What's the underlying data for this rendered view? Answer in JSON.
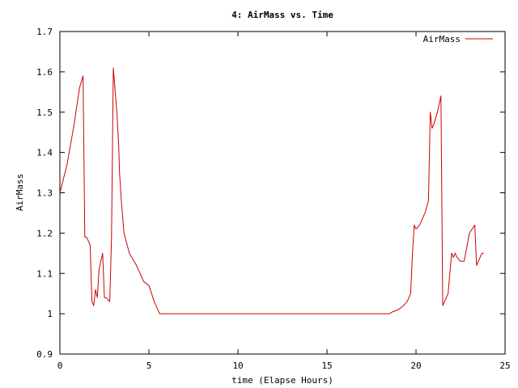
{
  "chart_data": {
    "type": "line",
    "title": "4: AirMass vs. Time",
    "xlabel": "time (Elapse Hours)",
    "ylabel": "AirMass",
    "xlim": [
      0,
      25
    ],
    "ylim": [
      0.9,
      1.7
    ],
    "xticks": [
      0,
      5,
      10,
      15,
      20,
      25
    ],
    "xtick_labels": [
      "0",
      "5",
      "10",
      "15",
      "20",
      "25"
    ],
    "yticks": [
      0.9,
      1.0,
      1.1,
      1.2,
      1.3,
      1.4,
      1.5,
      1.6,
      1.7
    ],
    "ytick_labels": [
      "0.9",
      "1",
      "1.1",
      "1.2",
      "1.3",
      "1.4",
      "1.5",
      "1.6",
      "1.7"
    ],
    "grid": false,
    "legend_position": "top-right",
    "series": [
      {
        "name": "AirMass",
        "color": "#cc0000",
        "x": [
          0.0,
          0.4,
          0.8,
          1.1,
          1.3,
          1.4,
          1.5,
          1.7,
          1.8,
          1.9,
          2.0,
          2.1,
          2.2,
          2.3,
          2.4,
          2.5,
          2.6,
          2.7,
          2.8,
          2.9,
          3.0,
          3.2,
          3.3,
          3.35,
          3.45,
          3.6,
          3.9,
          4.3,
          4.7,
          5.0,
          5.3,
          5.6,
          5.7,
          5.8,
          5.9,
          6.2,
          10.0,
          15.0,
          18.5,
          18.7,
          19.0,
          19.3,
          19.5,
          19.7,
          19.8,
          19.9,
          20.0,
          20.2,
          20.5,
          20.7,
          20.8,
          20.9,
          21.0,
          21.2,
          21.4,
          21.5,
          21.6,
          21.8,
          22.0,
          22.1,
          22.2,
          22.3,
          22.5,
          22.7,
          23.0,
          23.3,
          23.4,
          23.6,
          23.7,
          23.8
        ],
        "y": [
          1.3,
          1.37,
          1.47,
          1.56,
          1.59,
          1.19,
          1.19,
          1.17,
          1.03,
          1.02,
          1.06,
          1.04,
          1.11,
          1.13,
          1.15,
          1.04,
          1.04,
          1.035,
          1.03,
          1.19,
          1.61,
          1.5,
          1.42,
          1.35,
          1.28,
          1.2,
          1.15,
          1.12,
          1.08,
          1.07,
          1.03,
          1.0,
          1.0,
          1.0,
          1.0,
          1.0,
          1.0,
          1.0,
          1.0,
          1.005,
          1.01,
          1.02,
          1.03,
          1.05,
          1.15,
          1.22,
          1.21,
          1.22,
          1.25,
          1.28,
          1.5,
          1.46,
          1.47,
          1.5,
          1.54,
          1.02,
          1.03,
          1.05,
          1.15,
          1.14,
          1.15,
          1.14,
          1.13,
          1.13,
          1.2,
          1.22,
          1.12,
          1.14,
          1.15,
          1.15
        ]
      }
    ]
  }
}
